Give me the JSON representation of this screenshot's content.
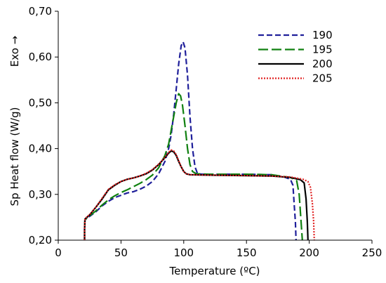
{
  "chart_data": {
    "type": "line",
    "xlabel": "Temperature (ºC)",
    "ylabel": "Sp Heat flow (W/g)",
    "exo_label": "Exo →",
    "xlim": [
      0,
      250
    ],
    "ylim": [
      0.2,
      0.7
    ],
    "x_ticks": [
      0,
      50,
      100,
      150,
      200,
      250
    ],
    "x_tick_labels": [
      "0",
      "50",
      "100",
      "150",
      "200",
      "250"
    ],
    "y_ticks": [
      0.2,
      0.3,
      0.4,
      0.5,
      0.6,
      0.7
    ],
    "y_tick_labels": [
      "0,20",
      "0,30",
      "0,40",
      "0,50",
      "0,60",
      "0,70"
    ],
    "grid": false,
    "legend_position": "top-right",
    "series": [
      {
        "name": "190",
        "color": "#1f1f9a",
        "dash": "dashed",
        "points": [
          [
            21,
            0.2
          ],
          [
            21,
            0.225
          ],
          [
            21.3,
            0.245
          ],
          [
            25,
            0.252
          ],
          [
            30,
            0.262
          ],
          [
            35,
            0.275
          ],
          [
            40,
            0.285
          ],
          [
            45,
            0.293
          ],
          [
            50,
            0.298
          ],
          [
            55,
            0.303
          ],
          [
            60,
            0.306
          ],
          [
            65,
            0.311
          ],
          [
            70,
            0.318
          ],
          [
            75,
            0.328
          ],
          [
            80,
            0.345
          ],
          [
            85,
            0.372
          ],
          [
            88,
            0.4
          ],
          [
            90,
            0.43
          ],
          [
            92,
            0.475
          ],
          [
            94,
            0.53
          ],
          [
            96,
            0.585
          ],
          [
            98,
            0.625
          ],
          [
            99.5,
            0.633
          ],
          [
            101,
            0.62
          ],
          [
            103,
            0.56
          ],
          [
            105,
            0.47
          ],
          [
            107,
            0.4
          ],
          [
            109,
            0.36
          ],
          [
            111,
            0.345
          ],
          [
            115,
            0.344
          ],
          [
            120,
            0.344
          ],
          [
            150,
            0.344
          ],
          [
            170,
            0.343
          ],
          [
            180,
            0.338
          ],
          [
            185,
            0.333
          ],
          [
            187,
            0.32
          ],
          [
            188,
            0.28
          ],
          [
            189,
            0.24
          ],
          [
            189.5,
            0.2
          ]
        ]
      },
      {
        "name": "195",
        "color": "#108010",
        "dash": "longdash",
        "points": [
          [
            21,
            0.2
          ],
          [
            21,
            0.225
          ],
          [
            21.3,
            0.245
          ],
          [
            25,
            0.253
          ],
          [
            30,
            0.264
          ],
          [
            35,
            0.277
          ],
          [
            40,
            0.288
          ],
          [
            45,
            0.297
          ],
          [
            50,
            0.304
          ],
          [
            55,
            0.31
          ],
          [
            60,
            0.317
          ],
          [
            65,
            0.324
          ],
          [
            70,
            0.332
          ],
          [
            75,
            0.342
          ],
          [
            80,
            0.358
          ],
          [
            85,
            0.385
          ],
          [
            88,
            0.41
          ],
          [
            90,
            0.44
          ],
          [
            92,
            0.47
          ],
          [
            94,
            0.5
          ],
          [
            96,
            0.52
          ],
          [
            97.5,
            0.515
          ],
          [
            99,
            0.495
          ],
          [
            101,
            0.45
          ],
          [
            103,
            0.4
          ],
          [
            105,
            0.365
          ],
          [
            107,
            0.35
          ],
          [
            110,
            0.345
          ],
          [
            120,
            0.344
          ],
          [
            150,
            0.344
          ],
          [
            170,
            0.343
          ],
          [
            185,
            0.337
          ],
          [
            190,
            0.33
          ],
          [
            192,
            0.3
          ],
          [
            193,
            0.26
          ],
          [
            194,
            0.22
          ],
          [
            194.5,
            0.2
          ]
        ]
      },
      {
        "name": "200",
        "color": "#000000",
        "dash": "solid",
        "points": [
          [
            21,
            0.2
          ],
          [
            21,
            0.225
          ],
          [
            21.3,
            0.246
          ],
          [
            25,
            0.255
          ],
          [
            30,
            0.272
          ],
          [
            35,
            0.29
          ],
          [
            40,
            0.31
          ],
          [
            45,
            0.32
          ],
          [
            50,
            0.328
          ],
          [
            55,
            0.333
          ],
          [
            60,
            0.336
          ],
          [
            65,
            0.34
          ],
          [
            70,
            0.345
          ],
          [
            75,
            0.353
          ],
          [
            80,
            0.365
          ],
          [
            85,
            0.38
          ],
          [
            88,
            0.39
          ],
          [
            90,
            0.395
          ],
          [
            92,
            0.393
          ],
          [
            94,
            0.385
          ],
          [
            96,
            0.372
          ],
          [
            98,
            0.36
          ],
          [
            100,
            0.35
          ],
          [
            102,
            0.345
          ],
          [
            105,
            0.343
          ],
          [
            120,
            0.342
          ],
          [
            150,
            0.341
          ],
          [
            170,
            0.34
          ],
          [
            185,
            0.337
          ],
          [
            193,
            0.332
          ],
          [
            196,
            0.325
          ],
          [
            197.5,
            0.29
          ],
          [
            198.5,
            0.24
          ],
          [
            199,
            0.2
          ]
        ]
      },
      {
        "name": "205",
        "color": "#e02020",
        "dash": "dotted",
        "points": [
          [
            21,
            0.2
          ],
          [
            21,
            0.225
          ],
          [
            21.3,
            0.247
          ],
          [
            25,
            0.256
          ],
          [
            30,
            0.272
          ],
          [
            35,
            0.292
          ],
          [
            40,
            0.311
          ],
          [
            45,
            0.321
          ],
          [
            50,
            0.328
          ],
          [
            55,
            0.333
          ],
          [
            60,
            0.336
          ],
          [
            65,
            0.34
          ],
          [
            70,
            0.346
          ],
          [
            75,
            0.354
          ],
          [
            80,
            0.366
          ],
          [
            85,
            0.381
          ],
          [
            88,
            0.392
          ],
          [
            90,
            0.397
          ],
          [
            92,
            0.395
          ],
          [
            94,
            0.387
          ],
          [
            96,
            0.374
          ],
          [
            98,
            0.36
          ],
          [
            100,
            0.35
          ],
          [
            102,
            0.345
          ],
          [
            105,
            0.343
          ],
          [
            120,
            0.342
          ],
          [
            150,
            0.341
          ],
          [
            170,
            0.34
          ],
          [
            185,
            0.338
          ],
          [
            195,
            0.333
          ],
          [
            199,
            0.328
          ],
          [
            201,
            0.315
          ],
          [
            202.5,
            0.28
          ],
          [
            203.5,
            0.24
          ],
          [
            204,
            0.2
          ]
        ]
      }
    ]
  }
}
